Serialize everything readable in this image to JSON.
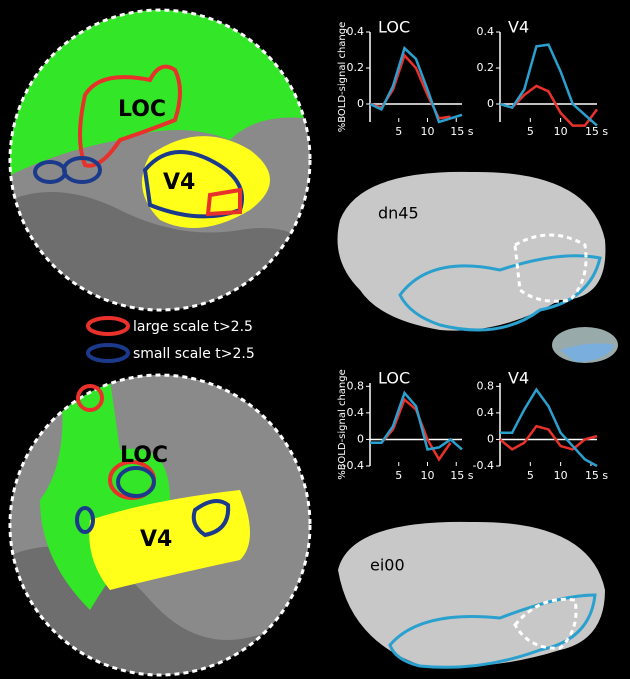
{
  "chart_data": [
    {
      "type": "line",
      "title": "LOC",
      "ylabel": "%BOLD-signal change",
      "x": [
        0,
        2,
        4,
        6,
        8,
        10,
        12,
        14,
        16
      ],
      "xlim": [
        0,
        16
      ],
      "xticks": [
        5,
        10,
        {
          "value": 15,
          "label": "15 s"
        }
      ],
      "ylim": [
        -0.1,
        0.4
      ],
      "yticks": [
        0,
        0.2,
        0.4
      ],
      "series": [
        {
          "name": "large scale t>2.5",
          "color": "#e8312a",
          "values": [
            0,
            -0.02,
            0.08,
            0.27,
            0.2,
            0.05,
            -0.08,
            -0.07,
            null
          ]
        },
        {
          "name": "small scale t>2.5",
          "color": "#2aa0cf",
          "values": [
            0,
            -0.03,
            0.1,
            0.31,
            0.25,
            0.08,
            -0.1,
            -0.08,
            -0.06
          ]
        }
      ]
    },
    {
      "type": "line",
      "title": "V4",
      "x": [
        0,
        2,
        4,
        6,
        8,
        10,
        12,
        14,
        16
      ],
      "xlim": [
        0,
        16
      ],
      "xticks": [
        5,
        10,
        {
          "value": 15,
          "label": "15 s"
        }
      ],
      "ylim": [
        -0.1,
        0.4
      ],
      "yticks": [
        0,
        0.2,
        0.4
      ],
      "series": [
        {
          "color": "#e8312a",
          "values": [
            0,
            -0.02,
            0.05,
            0.1,
            0.07,
            -0.05,
            -0.12,
            -0.12,
            -0.03
          ]
        },
        {
          "color": "#2aa0cf",
          "values": [
            0,
            -0.02,
            0.08,
            0.32,
            0.33,
            0.18,
            0,
            -0.06,
            -0.12
          ]
        }
      ]
    },
    {
      "type": "line",
      "title": "LOC",
      "ylabel": "%BOLD-signal change",
      "x": [
        0,
        2,
        4,
        6,
        8,
        10,
        12,
        14,
        16
      ],
      "xlim": [
        0,
        16
      ],
      "xticks": [
        5,
        10,
        {
          "value": 15,
          "label": "15 s"
        }
      ],
      "ylim": [
        -0.4,
        0.85
      ],
      "yticks": [
        -0.4,
        0,
        0.4,
        0.8
      ],
      "series": [
        {
          "color": "#e8312a",
          "values": [
            -0.05,
            -0.05,
            0.15,
            0.6,
            0.45,
            0,
            -0.3,
            -0.05,
            null
          ]
        },
        {
          "color": "#2aa0cf",
          "values": [
            -0.05,
            -0.05,
            0.2,
            0.7,
            0.5,
            -0.15,
            -0.12,
            0,
            -0.15
          ]
        }
      ]
    },
    {
      "type": "line",
      "title": "V4",
      "x": [
        0,
        2,
        4,
        6,
        8,
        10,
        12,
        14,
        16
      ],
      "xlim": [
        0,
        16
      ],
      "xticks": [
        5,
        10,
        {
          "value": 15,
          "label": "15 s"
        }
      ],
      "ylim": [
        -0.4,
        0.85
      ],
      "yticks": [
        -0.4,
        0,
        0.4,
        0.8
      ],
      "series": [
        {
          "color": "#e8312a",
          "values": [
            0,
            -0.15,
            -0.05,
            0.2,
            0.15,
            -0.1,
            -0.15,
            0,
            0.05
          ]
        },
        {
          "color": "#2aa0cf",
          "values": [
            0.1,
            0.1,
            0.45,
            0.75,
            0.5,
            0.1,
            -0.1,
            -0.3,
            -0.4
          ]
        }
      ]
    }
  ],
  "panels": [
    {
      "roi_labels": [
        "LOC",
        "V4"
      ],
      "subject": "dn45"
    },
    {
      "roi_labels": [
        "LOC",
        "V4"
      ],
      "subject": "ei00"
    }
  ]
}
